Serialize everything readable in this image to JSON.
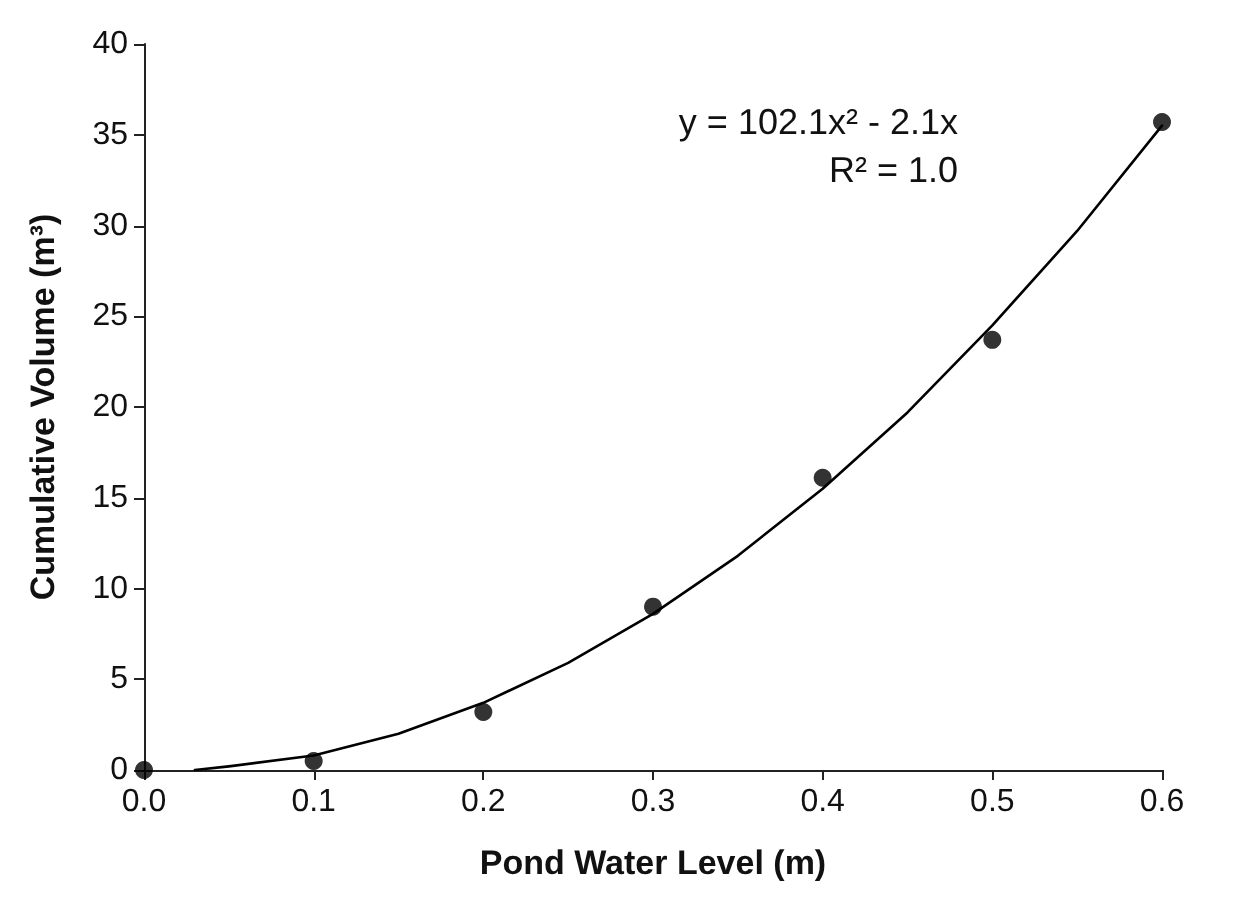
{
  "chart_data": {
    "type": "scatter",
    "xlabel": "Pond Water Level (m)",
    "ylabel": "Cumulative Volume (m³)",
    "annotations": [
      "y = 102.1x² - 2.1x",
      "R² = 1.0"
    ],
    "xlim": [
      0,
      0.6
    ],
    "xticks": [
      {
        "value": 0,
        "label": "0.0"
      },
      {
        "value": 0.1,
        "label": "0.1"
      },
      {
        "value": 0.2,
        "label": "0.2"
      },
      {
        "value": 0.3,
        "label": "0.3"
      },
      {
        "value": 0.4,
        "label": "0.4"
      },
      {
        "value": 0.5,
        "label": "0.5"
      },
      {
        "value": 0.6,
        "label": "0.6"
      }
    ],
    "ylim": [
      0,
      40
    ],
    "yticks": [
      0,
      5,
      10,
      15,
      20,
      25,
      30,
      35,
      40
    ],
    "grid": false,
    "series": [
      {
        "color": "#000000",
        "marker": "circle",
        "x": [
          0,
          0.1,
          0.2,
          0.3,
          0.4,
          0.5,
          0.6
        ],
        "values": [
          0,
          0.5,
          3.2,
          9.0,
          16.1,
          23.7,
          35.7
        ]
      },
      {
        "type": "line",
        "color": "#000000",
        "marker": "none",
        "line_style": "solid",
        "x": [
          0.03,
          0.05,
          0.1,
          0.15,
          0.2,
          0.25,
          0.3,
          0.35,
          0.4,
          0.45,
          0.5,
          0.55,
          0.6
        ],
        "values": [
          0.0,
          0.2,
          0.8,
          2.0,
          3.7,
          5.9,
          8.6,
          11.8,
          15.5,
          19.7,
          24.5,
          29.7,
          35.5
        ]
      }
    ]
  }
}
